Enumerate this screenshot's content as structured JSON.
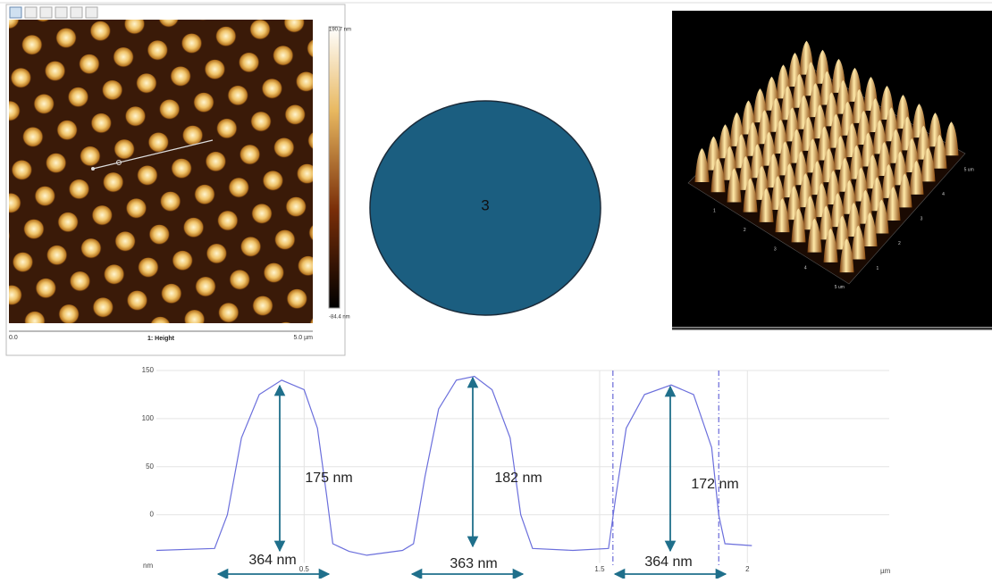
{
  "afm_2d": {
    "scale_max": "190.7 nm",
    "scale_min": "-84.4 nm",
    "x_start": "0.0",
    "x_end": "5.0 µm",
    "channel": "1: Height"
  },
  "circle_label": "3",
  "afm_3d": {
    "left_axis": [
      "1",
      "2",
      "3",
      "4",
      "5 um"
    ],
    "right_axis": [
      "1",
      "2",
      "3",
      "4",
      "5 um"
    ]
  },
  "chart_data": {
    "type": "line",
    "x_unit": "µm",
    "y_unit": "nm",
    "x": [
      0,
      0.197,
      0.24,
      0.288,
      0.348,
      0.424,
      0.5,
      0.545,
      0.576,
      0.597,
      0.652,
      0.712,
      0.833,
      0.87,
      0.909,
      0.955,
      1.015,
      1.076,
      1.136,
      1.197,
      1.233,
      1.273,
      1.409,
      1.53,
      1.555,
      1.59,
      1.652,
      1.742,
      1.818,
      1.879,
      1.903,
      1.924,
      2.015
    ],
    "series": [
      {
        "color": "#6b6fdc",
        "values": [
          -37,
          -35,
          0,
          80,
          125,
          140,
          130,
          90,
          20,
          -30,
          -38,
          -42,
          -37,
          -30,
          40,
          110,
          140,
          144,
          130,
          80,
          0,
          -35,
          -37,
          -35,
          20,
          90,
          125,
          135,
          125,
          70,
          0,
          -30,
          -32
        ]
      }
    ],
    "cursors": [
      1.545,
      1.903
    ],
    "xlim": [
      0,
      2.48
    ],
    "ylim": [
      -50,
      150
    ],
    "xticks": [
      0.5,
      1.5,
      2
    ],
    "yticks": [
      150,
      100,
      50,
      0
    ],
    "grid": true,
    "annotations": [
      "175 nm",
      "182 nm",
      "172 nm",
      "364 nm",
      "363 nm",
      "364 nm"
    ]
  }
}
